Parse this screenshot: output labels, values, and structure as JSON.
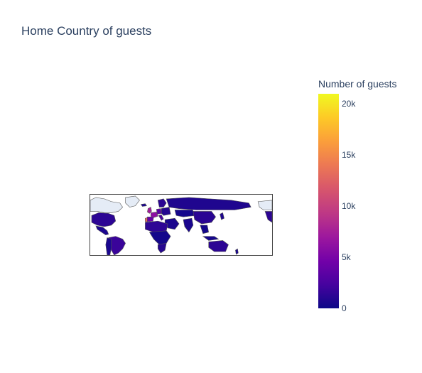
{
  "chart": {
    "title": "Home Country of guests",
    "colorbar": {
      "title": "Number of guests",
      "min": 0,
      "max": 21000,
      "ticks": [
        {
          "value": 0,
          "label": "0"
        },
        {
          "value": 5000,
          "label": "5k"
        },
        {
          "value": 10000,
          "label": "10k"
        },
        {
          "value": 15000,
          "label": "15k"
        },
        {
          "value": 20000,
          "label": "20k"
        }
      ]
    }
  },
  "colors": {
    "low": "#0d0887",
    "mid": "#9c179e",
    "high": "#f0f921",
    "no_data": "#e5ecf6",
    "border": "#444444",
    "text": "#2a3f5f"
  }
}
